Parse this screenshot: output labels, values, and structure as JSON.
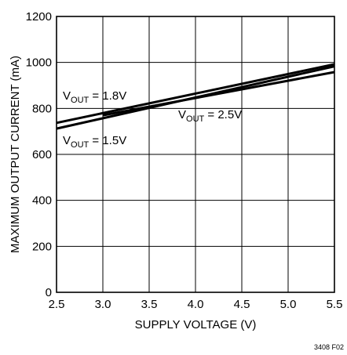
{
  "chart_data": {
    "type": "line",
    "xlabel": "SUPPLY VOLTAGE (V)",
    "ylabel": "MAXIMUM OUTPUT CURRENT (mA)",
    "xlim": [
      2.5,
      5.5
    ],
    "ylim": [
      0,
      1200
    ],
    "xticks": [
      "2.5",
      "3.0",
      "3.5",
      "4.0",
      "4.5",
      "5.0",
      "5.5"
    ],
    "yticks": [
      "0",
      "200",
      "400",
      "600",
      "800",
      "1000",
      "1200"
    ],
    "grid": true,
    "series": [
      {
        "name_prefix": "V",
        "name_sub": "OUT",
        "name_value": " = 1.8V",
        "x": [
          2.5,
          5.5
        ],
        "y": [
          737,
          992
        ]
      },
      {
        "name_prefix": "V",
        "name_sub": "OUT",
        "name_value": " = 1.5V",
        "x": [
          2.5,
          5.5
        ],
        "y": [
          712,
          983
        ]
      },
      {
        "name_prefix": "V",
        "name_sub": "OUT",
        "name_value": " = 2.5V",
        "x": [
          3.0,
          5.5
        ],
        "y": [
          770,
          958
        ]
      }
    ]
  },
  "figure_id": "3408 F02"
}
